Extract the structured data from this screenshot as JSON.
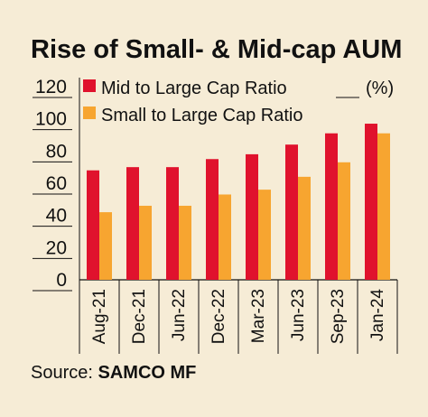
{
  "chart_data": {
    "type": "bar",
    "title": "Rise of Small- & Mid-cap AUM",
    "unit": "(%)",
    "categories": [
      "Aug-21",
      "Dec-21",
      "Jun-22",
      "Dec-22",
      "Mar-23",
      "Jun-23",
      "Sep-23",
      "Jan-24"
    ],
    "series": [
      {
        "name": "Mid to Large Cap Ratio",
        "color": "#e0122d",
        "values": [
          68,
          70,
          70,
          75,
          78,
          84,
          91,
          97
        ]
      },
      {
        "name": "Small to Large Cap Ratio",
        "color": "#f7a530",
        "values": [
          42,
          46,
          46,
          53,
          56,
          64,
          73,
          91
        ]
      }
    ],
    "ylim": [
      0,
      120
    ],
    "yticks": [
      "120",
      "100",
      "80",
      "60",
      "40",
      "20",
      "0"
    ],
    "grid": true,
    "legend": "top"
  },
  "source": {
    "label": "Source:",
    "name": "SAMCO MF"
  }
}
